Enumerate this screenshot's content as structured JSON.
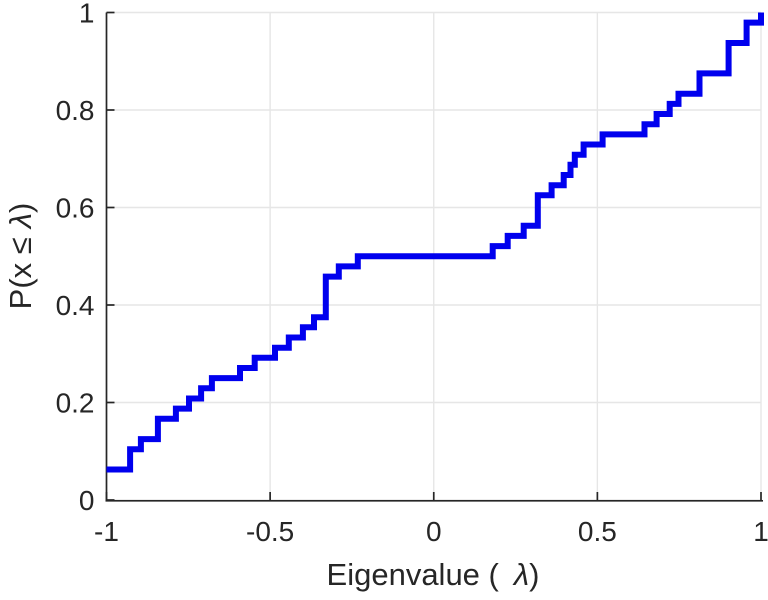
{
  "figure": {
    "background": "#ffffff"
  },
  "chart_data": {
    "type": "step",
    "subtype": "empirical-cdf",
    "title": "",
    "xlabel_prefix": "Eigenvalue (",
    "xlabel_lambda": "λ",
    "xlabel_suffix": ")",
    "ylabel_prefix": "P(x ≤",
    "ylabel_lambda": "λ",
    "ylabel_suffix": ")",
    "xlim": [
      -1,
      1
    ],
    "ylim": [
      0,
      1
    ],
    "xticks": [
      -1,
      -0.5,
      0,
      0.5,
      1
    ],
    "xtick_labels": [
      "-1",
      "-0.5",
      "0",
      "0.5",
      "1"
    ],
    "yticks": [
      0,
      0.2,
      0.4,
      0.6,
      0.8,
      1
    ],
    "ytick_labels": [
      "0",
      "0.2",
      "0.4",
      "0.6",
      "0.8",
      "1"
    ],
    "grid": true,
    "legend": "none",
    "n_samples": 48,
    "line_color": "#0000EE",
    "line_width": 6,
    "axis_color": "#262626",
    "grid_color": "#E6E6E6",
    "tick_label_color": "#262626",
    "steps": {
      "x": [
        -1.0,
        -0.928,
        -0.895,
        -0.843,
        -0.788,
        -0.748,
        -0.711,
        -0.678,
        -0.592,
        -0.547,
        -0.485,
        -0.443,
        -0.4,
        -0.366,
        -0.33,
        -0.29,
        -0.232,
        0.18,
        0.226,
        0.275,
        0.318,
        0.36,
        0.397,
        0.418,
        0.431,
        0.458,
        0.516,
        0.644,
        0.681,
        0.721,
        0.748,
        0.812,
        0.901,
        0.956,
        1.0
      ],
      "p": [
        0.0625,
        0.1042,
        0.125,
        0.1667,
        0.1875,
        0.2083,
        0.2292,
        0.25,
        0.2708,
        0.2917,
        0.3125,
        0.3333,
        0.3542,
        0.375,
        0.4583,
        0.4792,
        0.5,
        0.5208,
        0.5417,
        0.5625,
        0.625,
        0.6458,
        0.6667,
        0.6875,
        0.7083,
        0.7292,
        0.75,
        0.7708,
        0.7917,
        0.8125,
        0.8333,
        0.875,
        0.9375,
        0.9792,
        1.0
      ]
    }
  }
}
